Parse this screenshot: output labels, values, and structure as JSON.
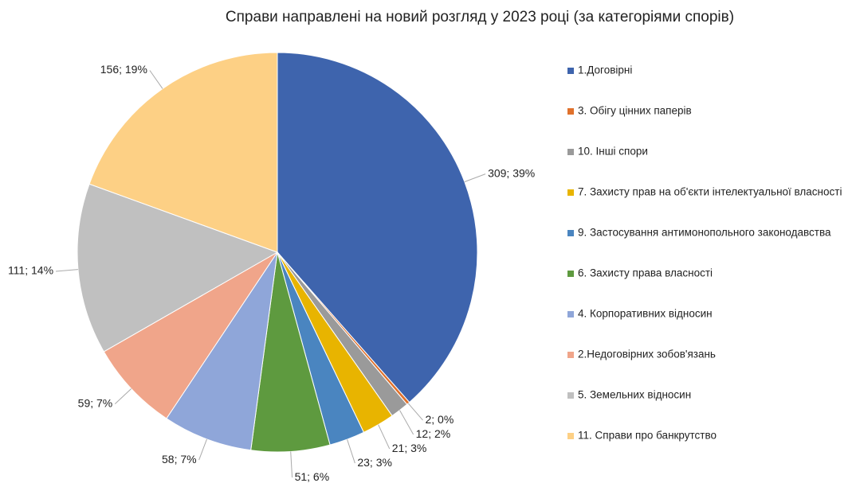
{
  "chart_data": {
    "type": "pie",
    "title": "Справи направлені на новий розгляд у 2023 році (за категоріями спорів)",
    "categories": [
      "1.Договірні",
      "3. Обігу цінних паперів",
      "10. Інші спори",
      "7. Захисту прав на об'єкти інтелектуальної власності",
      "9. Застосування антимонопольного законодавства",
      "6. Захисту права власності",
      "4. Корпоративних відносин",
      "2.Недоговірних зобов'язань",
      "5. Земельних відносин",
      "11. Справи про  банкрутство"
    ],
    "values": [
      309,
      2,
      12,
      21,
      23,
      51,
      58,
      59,
      111,
      156
    ],
    "value_labels": [
      "309; 39%",
      "2; 0%",
      "12; 2%",
      "21; 3%",
      "23; 3%",
      "51; 6%",
      "58; 7%",
      "59; 7%",
      "111; 14%",
      "156; 19%"
    ],
    "colors": [
      "#3e64ad",
      "#e0712c",
      "#9a9a9a",
      "#e8b400",
      "#4a85c0",
      "#5e9a3f",
      "#8fa6d9",
      "#f0a58a",
      "#c0c0c0",
      "#fdd085"
    ],
    "legend": "right"
  }
}
